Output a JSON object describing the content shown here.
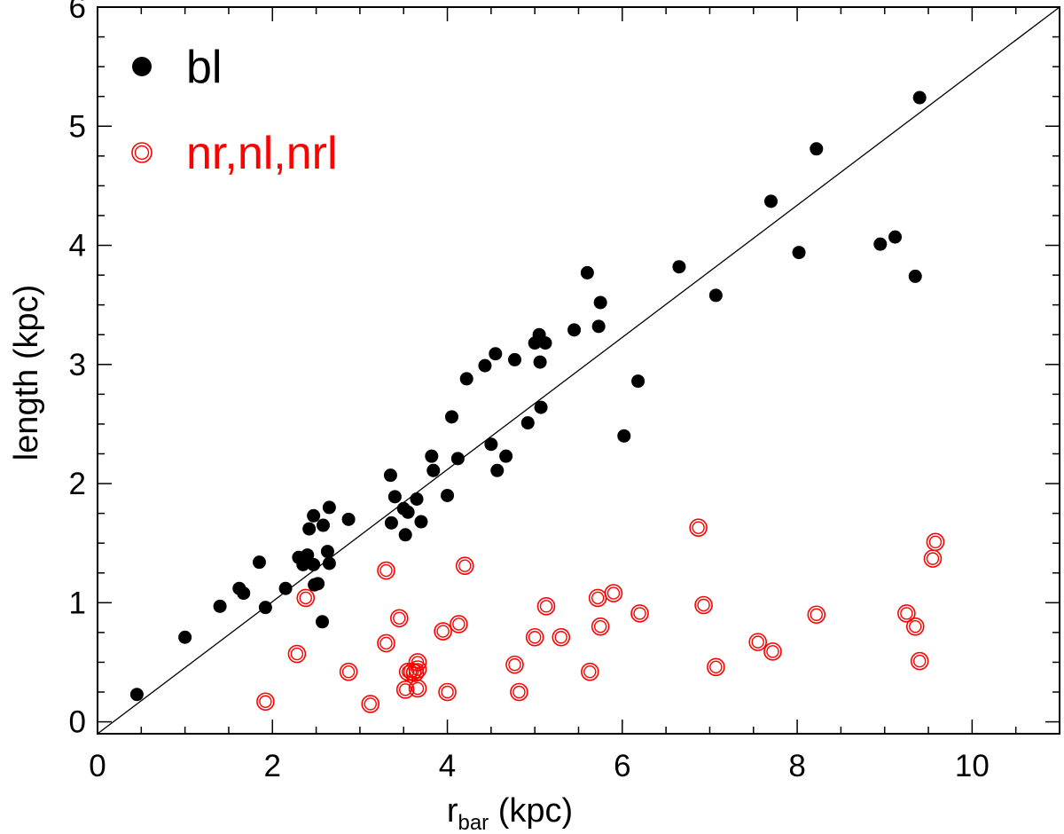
{
  "chart_data": {
    "type": "scatter",
    "title": "",
    "xlabel_main": "r",
    "xlabel_sub": "bar",
    "xlabel_unit": " (kpc)",
    "ylabel": "length (kpc)",
    "xlim": [
      0,
      11
    ],
    "ylim": [
      -0.1,
      6
    ],
    "xticks": [
      0,
      2,
      4,
      6,
      8,
      10
    ],
    "yticks": [
      0,
      1,
      2,
      3,
      4,
      5,
      6
    ],
    "xminor_step": 0.5,
    "yminor_step": 0.25,
    "grid": false,
    "legend_position": "top-left",
    "reference_line": {
      "from": [
        0,
        -0.1
      ],
      "to": [
        11,
        6
      ]
    },
    "series": [
      {
        "name": "bl",
        "marker": "filled-circle",
        "color": "#000000",
        "points": [
          [
            0.45,
            0.23
          ],
          [
            1.0,
            0.71
          ],
          [
            1.4,
            0.97
          ],
          [
            1.62,
            1.12
          ],
          [
            1.67,
            1.08
          ],
          [
            1.85,
            1.34
          ],
          [
            1.92,
            0.96
          ],
          [
            2.15,
            1.12
          ],
          [
            2.3,
            1.38
          ],
          [
            2.35,
            1.32
          ],
          [
            2.4,
            1.4
          ],
          [
            2.42,
            1.62
          ],
          [
            2.47,
            1.73
          ],
          [
            2.47,
            1.32
          ],
          [
            2.48,
            1.15
          ],
          [
            2.52,
            1.16
          ],
          [
            2.57,
            0.84
          ],
          [
            2.58,
            1.65
          ],
          [
            2.63,
            1.43
          ],
          [
            2.65,
            1.8
          ],
          [
            2.65,
            1.33
          ],
          [
            2.87,
            1.7
          ],
          [
            3.35,
            2.07
          ],
          [
            3.36,
            1.67
          ],
          [
            3.4,
            1.89
          ],
          [
            3.5,
            1.79
          ],
          [
            3.52,
            1.57
          ],
          [
            3.55,
            1.76
          ],
          [
            3.65,
            1.87
          ],
          [
            3.7,
            1.68
          ],
          [
            3.82,
            2.23
          ],
          [
            3.84,
            2.11
          ],
          [
            4.0,
            1.9
          ],
          [
            4.05,
            2.56
          ],
          [
            4.12,
            2.21
          ],
          [
            4.22,
            2.88
          ],
          [
            4.43,
            2.99
          ],
          [
            4.5,
            2.33
          ],
          [
            4.55,
            3.09
          ],
          [
            4.57,
            2.11
          ],
          [
            4.67,
            2.23
          ],
          [
            4.77,
            3.04
          ],
          [
            4.92,
            2.51
          ],
          [
            5.0,
            3.18
          ],
          [
            5.05,
            3.25
          ],
          [
            5.06,
            3.02
          ],
          [
            5.07,
            2.64
          ],
          [
            5.12,
            3.18
          ],
          [
            5.45,
            3.29
          ],
          [
            5.6,
            3.77
          ],
          [
            5.73,
            3.32
          ],
          [
            5.75,
            3.52
          ],
          [
            6.02,
            2.4
          ],
          [
            6.18,
            2.86
          ],
          [
            6.65,
            3.82
          ],
          [
            7.07,
            3.58
          ],
          [
            7.7,
            4.37
          ],
          [
            8.02,
            3.94
          ],
          [
            8.22,
            4.81
          ],
          [
            8.95,
            4.01
          ],
          [
            9.12,
            4.07
          ],
          [
            9.35,
            3.74
          ],
          [
            9.4,
            5.24
          ]
        ]
      },
      {
        "name": "nr,nl,nrl",
        "marker": "open-double-circle",
        "color": "#ff0000",
        "points": [
          [
            1.92,
            0.17
          ],
          [
            2.28,
            0.57
          ],
          [
            2.38,
            1.04
          ],
          [
            2.87,
            0.42
          ],
          [
            3.12,
            0.15
          ],
          [
            3.3,
            1.27
          ],
          [
            3.3,
            0.66
          ],
          [
            3.45,
            0.87
          ],
          [
            3.52,
            0.27
          ],
          [
            3.55,
            0.42
          ],
          [
            3.6,
            0.42
          ],
          [
            3.63,
            0.41
          ],
          [
            3.66,
            0.44
          ],
          [
            3.66,
            0.28
          ],
          [
            3.66,
            0.5
          ],
          [
            3.95,
            0.76
          ],
          [
            4.0,
            0.25
          ],
          [
            4.13,
            0.82
          ],
          [
            4.2,
            1.31
          ],
          [
            4.77,
            0.48
          ],
          [
            4.82,
            0.25
          ],
          [
            5.0,
            0.71
          ],
          [
            5.13,
            0.97
          ],
          [
            5.3,
            0.71
          ],
          [
            5.63,
            0.42
          ],
          [
            5.72,
            1.04
          ],
          [
            5.75,
            0.8
          ],
          [
            5.9,
            1.08
          ],
          [
            6.2,
            0.91
          ],
          [
            6.87,
            1.63
          ],
          [
            6.93,
            0.98
          ],
          [
            7.07,
            0.46
          ],
          [
            7.55,
            0.67
          ],
          [
            7.72,
            0.59
          ],
          [
            8.22,
            0.9
          ],
          [
            9.25,
            0.91
          ],
          [
            9.35,
            0.8
          ],
          [
            9.4,
            0.51
          ],
          [
            9.55,
            1.37
          ],
          [
            9.58,
            1.51
          ]
        ]
      }
    ]
  }
}
